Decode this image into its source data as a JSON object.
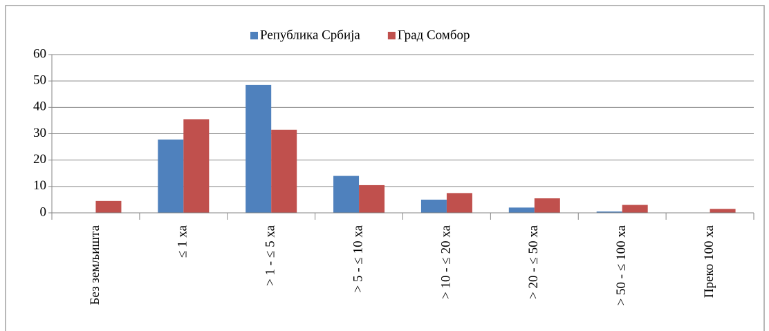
{
  "chart_data": {
    "type": "bar",
    "categories": [
      "Без земљишта",
      "≤ 1 ха",
      "> 1 - ≤ 5 ха",
      "> 5 - ≤ 10 ха",
      "> 10 - ≤ 20 ха",
      "> 20 - ≤ 50 ха",
      "> 50 - ≤ 100 ха",
      "Преко 100 ха"
    ],
    "series": [
      {
        "name": "Република Србија",
        "color": "#4f81bd",
        "values": [
          0,
          27.8,
          48.5,
          14,
          5,
          2,
          0.5,
          0
        ]
      },
      {
        "name": "Град Сомбор",
        "color": "#c0504d",
        "values": [
          4.5,
          35.5,
          31.5,
          10.5,
          7.5,
          5.5,
          3,
          1.5
        ]
      }
    ],
    "ylim": [
      0,
      60
    ],
    "yticks": [
      0,
      10,
      20,
      30,
      40,
      50,
      60
    ],
    "grid": true,
    "legend": "top"
  }
}
